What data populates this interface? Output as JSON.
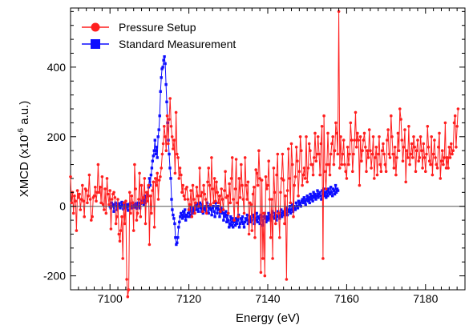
{
  "chart_data": {
    "type": "line",
    "xlabel": "Energy (eV)",
    "ylabel": {
      "prefix": "XMCD (x10",
      "exponent": "-6",
      "suffix": "  a.u.)"
    },
    "xlim": [
      7090,
      7190
    ],
    "ylim": [
      -240,
      570
    ],
    "x_ticks": [
      7100,
      7120,
      7140,
      7160,
      7180
    ],
    "y_ticks": [
      -200,
      0,
      200,
      400
    ],
    "zero_line": true,
    "legend": {
      "placement": "top-left"
    },
    "series": [
      {
        "name": "Pressure Setup",
        "color": "#ff1f1f",
        "marker": "circle",
        "x_start": 7090,
        "x_step": 0.25,
        "y": [
          85,
          10,
          40,
          -20,
          30,
          15,
          -70,
          45,
          25,
          35,
          -10,
          20,
          60,
          15,
          -30,
          50,
          45,
          10,
          30,
          90,
          20,
          -40,
          -30,
          25,
          30,
          55,
          15,
          40,
          120,
          40,
          55,
          10,
          85,
          5,
          -10,
          50,
          -20,
          80,
          35,
          5,
          45,
          -65,
          20,
          35,
          40,
          25,
          -50,
          -30,
          20,
          -80,
          -100,
          -70,
          -30,
          -150,
          10,
          -50,
          15,
          -210,
          -260,
          -240,
          40,
          -20,
          30,
          10,
          -70,
          120,
          50,
          -40,
          -20,
          20,
          95,
          -30,
          60,
          10,
          25,
          80,
          -50,
          40,
          15,
          60,
          -110,
          30,
          -20,
          45,
          70,
          -60,
          80,
          60,
          95,
          20,
          75,
          85,
          110,
          150,
          180,
          230,
          200,
          160,
          260,
          180,
          250,
          310,
          230,
          200,
          165,
          190,
          95,
          270,
          150,
          140,
          80,
          110,
          90,
          40,
          60,
          30,
          20,
          50,
          55,
          20,
          -10,
          5,
          45,
          -30,
          60,
          20,
          -20,
          10,
          55,
          30,
          0,
          110,
          30,
          40,
          -15,
          60,
          35,
          20,
          -20,
          70,
          110,
          60,
          5,
          140,
          50,
          10,
          80,
          15,
          70,
          40,
          10,
          30,
          -15,
          50,
          20,
          -10,
          45,
          100,
          25,
          30,
          -20,
          65,
          10,
          80,
          140,
          20,
          -40,
          50,
          135,
          10,
          -30,
          80,
          25,
          120,
          60,
          20,
          -20,
          140,
          60,
          20,
          70,
          -80,
          10,
          5,
          -70,
          35,
          55,
          -90,
          105,
          95,
          60,
          160,
          80,
          -190,
          75,
          -150,
          -20,
          -200,
          85,
          50,
          60,
          130,
          20,
          -90,
          20,
          -150,
          110,
          40,
          -50,
          90,
          150,
          -20,
          -90,
          40,
          80,
          150,
          75,
          -50,
          30,
          -210,
          45,
          165,
          80,
          10,
          180,
          120,
          -30,
          60,
          85,
          170,
          130,
          30,
          100,
          200,
          160,
          60,
          90,
          110,
          80,
          200,
          70,
          110,
          180,
          160,
          120,
          120,
          90,
          140,
          210,
          130,
          150,
          200,
          150,
          90,
          180,
          230,
          -150,
          260,
          100,
          50,
          120,
          210,
          120,
          90,
          150,
          180,
          200,
          120,
          160,
          240,
          210,
          150,
          560,
          110,
          200,
          120,
          150,
          190,
          120,
          100,
          80,
          170,
          120,
          150,
          240,
          190,
          100,
          150,
          190,
          270,
          170,
          210,
          190,
          60,
          200,
          130,
          160,
          190,
          210,
          170,
          100,
          160,
          140,
          220,
          160,
          110,
          150,
          200,
          80,
          140,
          170,
          90,
          150,
          200,
          120,
          100,
          160,
          180,
          150,
          120,
          100,
          190,
          220,
          150,
          140,
          260,
          200,
          150,
          110,
          170,
          90,
          140,
          210,
          160,
          280,
          250,
          190,
          130,
          170,
          220,
          70,
          160,
          140,
          230,
          120,
          150,
          180,
          140,
          200,
          170,
          100,
          160,
          190,
          130,
          140,
          200,
          160,
          110,
          180,
          140,
          100,
          150,
          230,
          170,
          130,
          120,
          200,
          90,
          150,
          190,
          140,
          120,
          110,
          170,
          210,
          80,
          130,
          160,
          120,
          140,
          240,
          110,
          140,
          110,
          170,
          140,
          180,
          150,
          160,
          240,
          260,
          170,
          230,
          280
        ]
      },
      {
        "name": "Standard Measurement",
        "color": "#0d0dff",
        "marker": "square",
        "x_start": 7100,
        "x_step": 0.2,
        "y": [
          0,
          -5,
          10,
          5,
          0,
          -15,
          5,
          10,
          0,
          -10,
          5,
          0,
          8,
          -5,
          0,
          12,
          5,
          -8,
          0,
          10,
          -5,
          5,
          0,
          -12,
          6,
          2,
          8,
          -5,
          0,
          10,
          5,
          -3,
          0,
          8,
          -6,
          5,
          10,
          0,
          -5,
          8,
          15,
          10,
          20,
          5,
          30,
          10,
          25,
          40,
          30,
          55,
          80,
          60,
          90,
          110,
          130,
          145,
          160,
          190,
          150,
          170,
          140,
          200,
          220,
          260,
          330,
          370,
          395,
          400,
          420,
          430,
          410,
          350,
          300,
          240,
          190,
          150,
          110,
          80,
          20,
          -10,
          -25,
          -35,
          -50,
          -90,
          -110,
          -105,
          -90,
          -60,
          -45,
          -30,
          -20,
          -25,
          -35,
          -15,
          -30,
          -10,
          -40,
          -25,
          -30,
          -20,
          -10,
          -30,
          0,
          -25,
          -15,
          -5,
          -20,
          -10,
          0,
          5,
          -10,
          8,
          -15,
          0,
          10,
          -5,
          -15,
          5,
          -20,
          -5,
          -10,
          0,
          -15,
          10,
          0,
          -20,
          -5,
          5,
          -10,
          -25,
          -5,
          0,
          -15,
          -30,
          10,
          -5,
          -20,
          0,
          -10,
          -30,
          -15,
          -5,
          -20,
          -10,
          -40,
          -20,
          -30,
          -15,
          -45,
          -25,
          -40,
          -60,
          -50,
          -30,
          -55,
          -35,
          -60,
          -45,
          -40,
          -55,
          -35,
          -50,
          -40,
          -25,
          -60,
          -50,
          -35,
          -45,
          -30,
          -50,
          -60,
          -45,
          -35,
          -40,
          -25,
          -50,
          -40,
          -30,
          -45,
          -35,
          -40,
          -25,
          -30,
          -50,
          -35,
          -40,
          -20,
          -45,
          -30,
          -35,
          -50,
          -25,
          -30,
          -40,
          -55,
          -30,
          -20,
          -35,
          -45,
          -30,
          -40,
          -20,
          -35,
          -25,
          -40,
          -30,
          -15,
          -30,
          -35,
          -20,
          -25,
          -40,
          -30,
          -15,
          -20,
          -35,
          -25,
          -10,
          -30,
          -20,
          -15,
          -25,
          -10,
          -20,
          -5,
          -25,
          -10,
          -15,
          0,
          -20,
          -10,
          5,
          -15,
          0,
          -5,
          -10,
          10,
          0,
          -5,
          15,
          5,
          10,
          0,
          15,
          20,
          10,
          25,
          15,
          5,
          20,
          30,
          15,
          25,
          10,
          35,
          20,
          30,
          15,
          40,
          25,
          35,
          20,
          30,
          45,
          25,
          35,
          40,
          30,
          20,
          45,
          35,
          50,
          30,
          40,
          25,
          45,
          30,
          50,
          40,
          35,
          55,
          40,
          30,
          50,
          45,
          35,
          60,
          40,
          50,
          45
        ]
      }
    ]
  }
}
